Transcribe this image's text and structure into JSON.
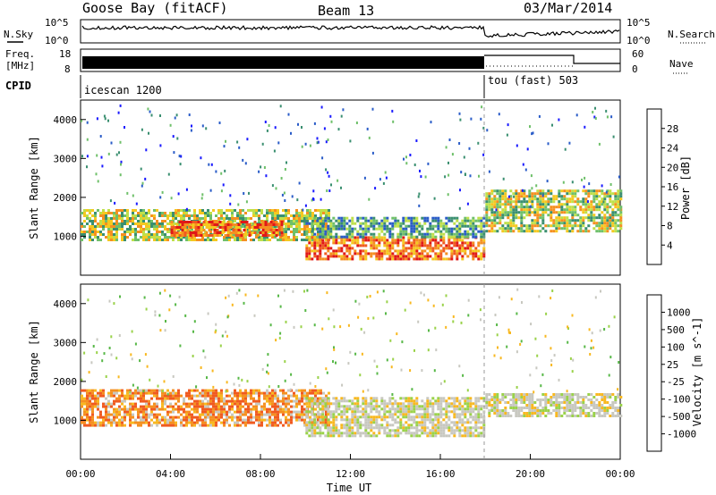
{
  "header": {
    "station": "Goose Bay (fitACF)",
    "beam": "Beam 13",
    "date": "03/Mar/2014"
  },
  "summary": {
    "nsky_label": "N.Sky",
    "nsearch_label": "N.Search",
    "freq_label_line1": "Freq.",
    "freq_label_line2": "[MHz]",
    "nave_label": "Nave",
    "cpid_label": "CPID",
    "noise_ticks_left": [
      "10^5",
      "10^0"
    ],
    "noise_ticks_right": [
      "10^5",
      "10^0"
    ],
    "freq_ticks_left": [
      "18",
      "8"
    ],
    "nave_ticks_right": [
      "60",
      "0"
    ],
    "cpid_segments": [
      {
        "label": "icescan 1200",
        "start_hour": 0,
        "end_hour": 18
      },
      {
        "label": "tou (fast) 503",
        "start_hour": 18,
        "end_hour": 24
      }
    ]
  },
  "x_axis": {
    "label": "Time UT",
    "ticks": [
      "00:00",
      "04:00",
      "08:00",
      "12:00",
      "16:00",
      "20:00",
      "00:00"
    ]
  },
  "colors": {
    "power_scale": [
      "#1a1aff",
      "#2a5cc8",
      "#3a8f70",
      "#6fc06a",
      "#bfe04a",
      "#f5c820",
      "#f59020",
      "#f05a20",
      "#e01818"
    ],
    "velocity_scale": [
      "#e01818",
      "#f05a20",
      "#f59020",
      "#f8b820",
      "#c8c8c0",
      "#9ad24a",
      "#58b848",
      "#3a7ab0",
      "#2a3aa8"
    ],
    "line": "#000000"
  },
  "chart_data": [
    {
      "type": "heatmap",
      "title": "",
      "ylabel": "Slant Range [km]",
      "xlabel": "",
      "ylim": [
        0,
        4500
      ],
      "xlim_hours": [
        0,
        24
      ],
      "y_ticks": [
        "1000",
        "2000",
        "3000",
        "4000"
      ],
      "colorbar": {
        "label": "Power [dB]",
        "ticks": [
          "4",
          "8",
          "12",
          "16",
          "20",
          "24",
          "28"
        ],
        "range": [
          0,
          30
        ]
      },
      "bands": [
        {
          "start_hour": 0,
          "end_hour": 11,
          "range_min": 900,
          "range_max": 1700,
          "level": "mid"
        },
        {
          "start_hour": 4,
          "end_hour": 9,
          "range_min": 1000,
          "range_max": 1400,
          "level": "high"
        },
        {
          "start_hour": 10,
          "end_hour": 18,
          "range_min": 400,
          "range_max": 1000,
          "level": "high"
        },
        {
          "start_hour": 10,
          "end_hour": 18,
          "range_min": 1000,
          "range_max": 1500,
          "level": "low"
        },
        {
          "start_hour": 18,
          "end_hour": 24,
          "range_min": 1100,
          "range_max": 2200,
          "level": "mid"
        }
      ]
    },
    {
      "type": "heatmap",
      "title": "",
      "ylabel": "Slant Range [km]",
      "xlabel": "Time UT",
      "ylim": [
        0,
        4500
      ],
      "xlim_hours": [
        0,
        24
      ],
      "y_ticks": [
        "1000",
        "2000",
        "3000",
        "4000"
      ],
      "colorbar": {
        "label": "Velocity [m s^-1]",
        "ticks": [
          "1000",
          "500",
          "100",
          "25",
          "-25",
          "-100",
          "-500",
          "-1000"
        ]
      },
      "bands": [
        {
          "start_hour": 0,
          "end_hour": 11,
          "range_min": 900,
          "range_max": 1800,
          "level": "negative"
        },
        {
          "start_hour": 10,
          "end_hour": 18,
          "range_min": 600,
          "range_max": 1600,
          "level": "near-zero"
        },
        {
          "start_hour": 18,
          "end_hour": 24,
          "range_min": 1100,
          "range_max": 1700,
          "level": "near-zero"
        }
      ]
    }
  ]
}
